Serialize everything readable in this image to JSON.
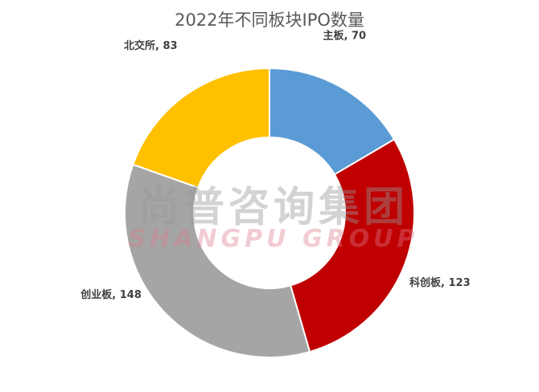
{
  "colors": {
    "background": "#ffffff",
    "title": "#595959",
    "label": "#404040",
    "border": "#ffffff"
  },
  "watermark": {
    "cn": "尚普咨询集团",
    "en": "SHANGPU GROUP"
  },
  "chart_data": {
    "type": "pie",
    "style": "donut",
    "title": "2022年不同板块IPO数量",
    "labels": [
      "主板",
      "科创板",
      "创业板",
      "北交所"
    ],
    "values": [
      70,
      123,
      148,
      83
    ],
    "colors": [
      "#5b9bd5",
      "#c00000",
      "#a5a5a5",
      "#ffc000"
    ],
    "legend": "none",
    "data_labels": [
      "主板, 70",
      "科创板, 123",
      "创业板, 148",
      "北交所, 83"
    ]
  }
}
